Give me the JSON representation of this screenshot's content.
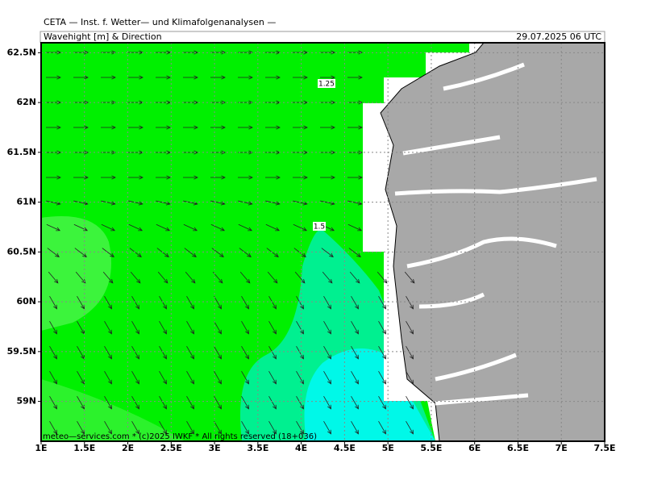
{
  "header": {
    "title": "CETA — Inst. f. Wetter— und Klimafolgenanalysen —",
    "subtitle": "Wavehight [m] & Direction",
    "datetime": "29.07.2025 06 UTC"
  },
  "map": {
    "xlim": [
      1,
      7.5
    ],
    "ylim": [
      58.6,
      62.6
    ],
    "xticks": [
      {
        "value": 1,
        "label": "1E"
      },
      {
        "value": 1.5,
        "label": "1.5E"
      },
      {
        "value": 2,
        "label": "2E"
      },
      {
        "value": 2.5,
        "label": "2.5E"
      },
      {
        "value": 3,
        "label": "3E"
      },
      {
        "value": 3.5,
        "label": "3.5E"
      },
      {
        "value": 4,
        "label": "4E"
      },
      {
        "value": 4.5,
        "label": "4.5E"
      },
      {
        "value": 5,
        "label": "5E"
      },
      {
        "value": 5.5,
        "label": "5.5E"
      },
      {
        "value": 6,
        "label": "6E"
      },
      {
        "value": 6.5,
        "label": "6.5E"
      },
      {
        "value": 7,
        "label": "7E"
      },
      {
        "value": 7.5,
        "label": "7.5E"
      }
    ],
    "yticks": [
      {
        "value": 59,
        "label": "59N"
      },
      {
        "value": 59.5,
        "label": "59.5N"
      },
      {
        "value": 60,
        "label": "60N"
      },
      {
        "value": 60.5,
        "label": "60.5N"
      },
      {
        "value": 61,
        "label": "61N"
      },
      {
        "value": 61.5,
        "label": "61.5N"
      },
      {
        "value": 62,
        "label": "62N"
      },
      {
        "value": 62.5,
        "label": "62.5N"
      }
    ],
    "contour_labels": [
      "1.25",
      "1.5"
    ]
  },
  "footer": {
    "credit": "meteo—services.com * (c)2025 IWKF * All rights reserved (18+036)"
  }
}
